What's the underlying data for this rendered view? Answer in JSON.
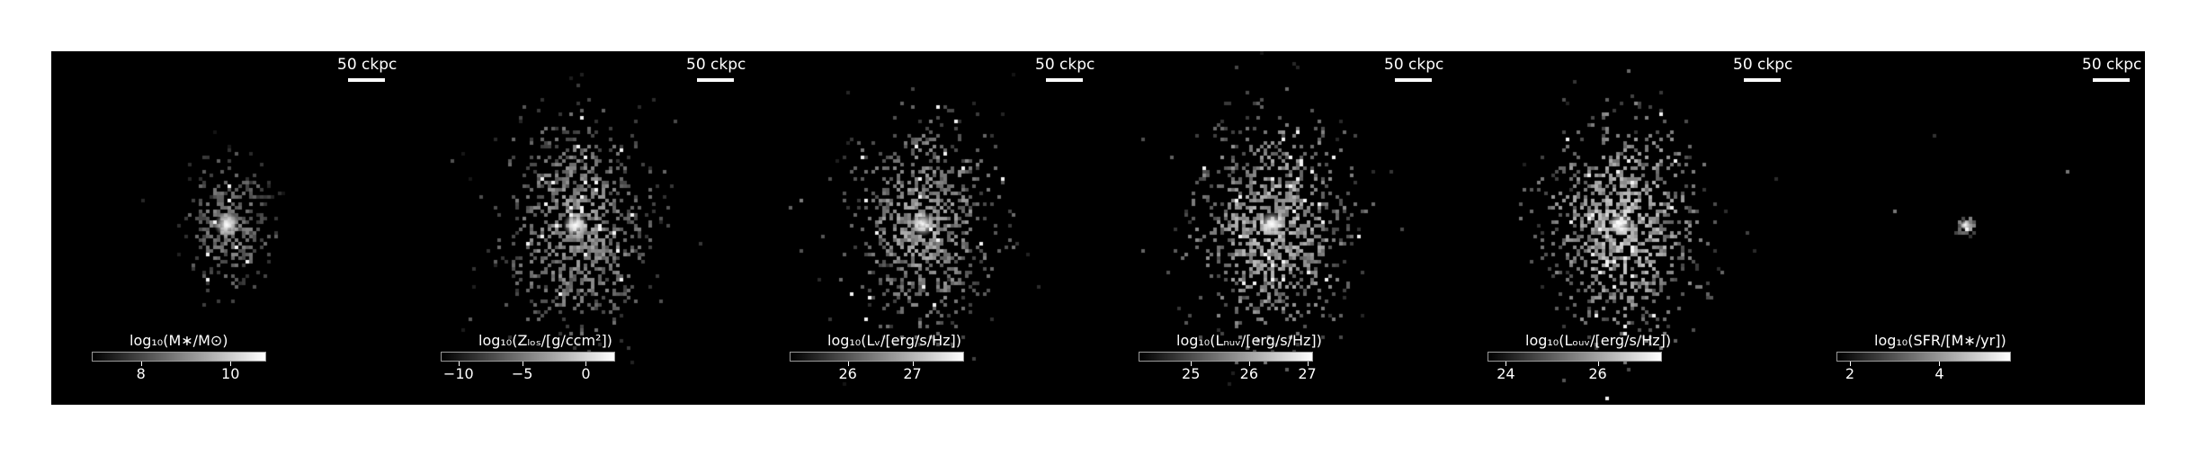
{
  "colormap": {
    "low": "#000000",
    "high": "#ffffff"
  },
  "panels": [
    {
      "id": "mass",
      "scalebar": "50 ckpc",
      "colorbar_label": "log₁₀(M∗/M⊙)",
      "vmin": 6.9,
      "vmax": 10.8,
      "ticks": [
        {
          "value": 8,
          "label": "8"
        },
        {
          "value": 10,
          "label": "10"
        }
      ]
    },
    {
      "id": "metallicity",
      "scalebar": "50 ckpc",
      "colorbar_label": "log₁₀(Zₗₒₛ/[g/ccm²])",
      "vmin": -11.4,
      "vmax": 2.3,
      "ticks": [
        {
          "value": -10,
          "label": "−10"
        },
        {
          "value": -5,
          "label": "−5"
        },
        {
          "value": 0,
          "label": "0"
        }
      ]
    },
    {
      "id": "lum-v",
      "scalebar": "50 ckpc",
      "colorbar_label": "log₁₀(Lᵥ/[erg/s/Hz])",
      "vmin": 25.1,
      "vmax": 27.8,
      "ticks": [
        {
          "value": 26,
          "label": "26"
        },
        {
          "value": 27,
          "label": "27"
        }
      ]
    },
    {
      "id": "lum-nuv",
      "scalebar": "50 ckpc",
      "colorbar_label": "log₁₀(Lₙᵤᵥ/[erg/s/Hz])",
      "vmin": 24.1,
      "vmax": 27.1,
      "ticks": [
        {
          "value": 25,
          "label": "25"
        },
        {
          "value": 26,
          "label": "26"
        },
        {
          "value": 27,
          "label": "27"
        }
      ]
    },
    {
      "id": "lum-fuv",
      "scalebar": "50 ckpc",
      "colorbar_label": "log₁₀(Lₒᵤᵥ/[erg/s/Hz])",
      "vmin": 23.6,
      "vmax": 27.4,
      "ticks": [
        {
          "value": 24,
          "label": "24"
        },
        {
          "value": 26,
          "label": "26"
        }
      ]
    },
    {
      "id": "sfr",
      "scalebar": "50 ckpc",
      "colorbar_label": "log₁₀(SFR/[M∗/yr])",
      "vmin": 1.7,
      "vmax": 5.6,
      "ticks": [
        {
          "value": 2,
          "label": "2"
        },
        {
          "value": 4,
          "label": "4"
        }
      ]
    }
  ]
}
